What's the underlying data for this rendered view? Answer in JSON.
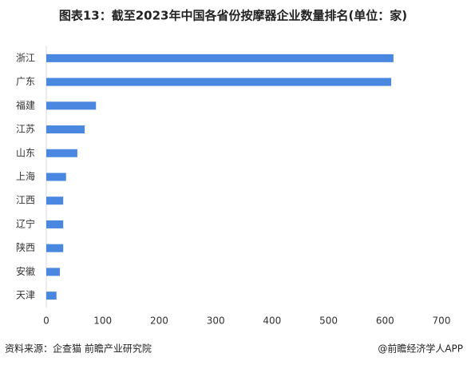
{
  "chart_data": {
    "type": "bar",
    "orientation": "horizontal",
    "title": "图表13：截至2023年中国各省份按摩器企业数量排名(单位：家)",
    "categories": [
      "浙江",
      "广东",
      "福建",
      "江苏",
      "山东",
      "上海",
      "江西",
      "辽宁",
      "陕西",
      "安徽",
      "天津"
    ],
    "values": [
      615,
      611,
      88,
      68,
      55,
      35,
      30,
      30,
      30,
      24,
      18
    ],
    "color": "#4a87e0",
    "xlim": [
      0,
      700
    ],
    "xticks": [
      0,
      100,
      200,
      300,
      400,
      500,
      600,
      700
    ],
    "grid": false,
    "source": "资料来源：企查猫 前瞻产业研究院",
    "credit": "@前瞻经济学人APP"
  }
}
